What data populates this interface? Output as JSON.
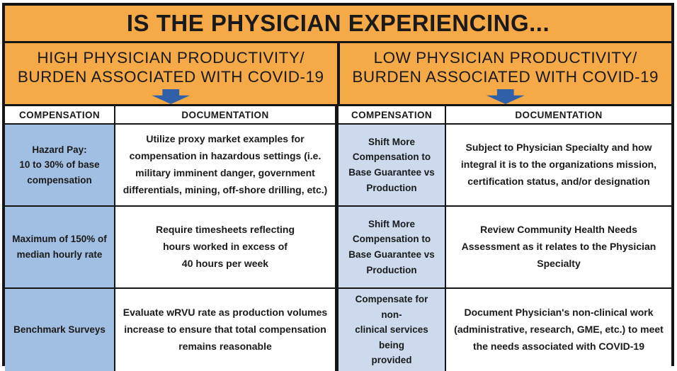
{
  "title": "IS THE PHYSICIAN EXPERIENCING...",
  "colors": {
    "banner_orange": "#F6AA47",
    "arrow_blue": "#3060A8",
    "compensation_blue_left": "#A1BFE3",
    "compensation_blue_right": "#CDDAEE",
    "border_black": "#151515"
  },
  "branches": [
    {
      "heading": "HIGH PHYSICIAN PRODUCTIVITY/\nBURDEN ASSOCIATED WITH COVID-19"
    },
    {
      "heading": "LOW PHYSICIAN PRODUCTIVITY/\nBURDEN ASSOCIATED WITH COVID-19"
    }
  ],
  "table": {
    "headers": [
      "COMPENSATION",
      "DOCUMENTATION",
      "COMPENSATION",
      "DOCUMENTATION"
    ],
    "rows": [
      {
        "high_compensation": "Hazard Pay:\n10 to 30% of base\ncompensation",
        "high_documentation": "Utilize proxy market examples for\ncompensation in hazardous settings (i.e.\nmilitary imminent danger, government\ndifferentials, mining, off-shore drilling, etc.)",
        "low_compensation": "Shift More\nCompensation to\nBase Guarantee vs\nProduction",
        "low_documentation": "Subject to Physician Specialty and how\nintegral it is to the organizations mission,\ncertification status, and/or designation"
      },
      {
        "high_compensation": "Maximum of 150% of\nmedian hourly rate",
        "high_documentation": "Require timesheets reflecting\nhours worked in excess of\n40 hours per week",
        "low_compensation": "Shift More\nCompensation to\nBase Guarantee vs\nProduction",
        "low_documentation": "Review Community Health Needs\nAssessment as it relates to the Physician\nSpecialty"
      },
      {
        "high_compensation": "Benchmark Surveys",
        "high_documentation": "Evaluate wRVU rate as production volumes\nincrease to ensure that total compensation\nremains reasonable",
        "low_compensation": "Compensate for non-\nclinical services being\nprovided",
        "low_documentation": "Document Physician's non-clinical work\n(administrative, research, GME, etc.) to meet\nthe needs associated with COVID-19"
      }
    ]
  }
}
